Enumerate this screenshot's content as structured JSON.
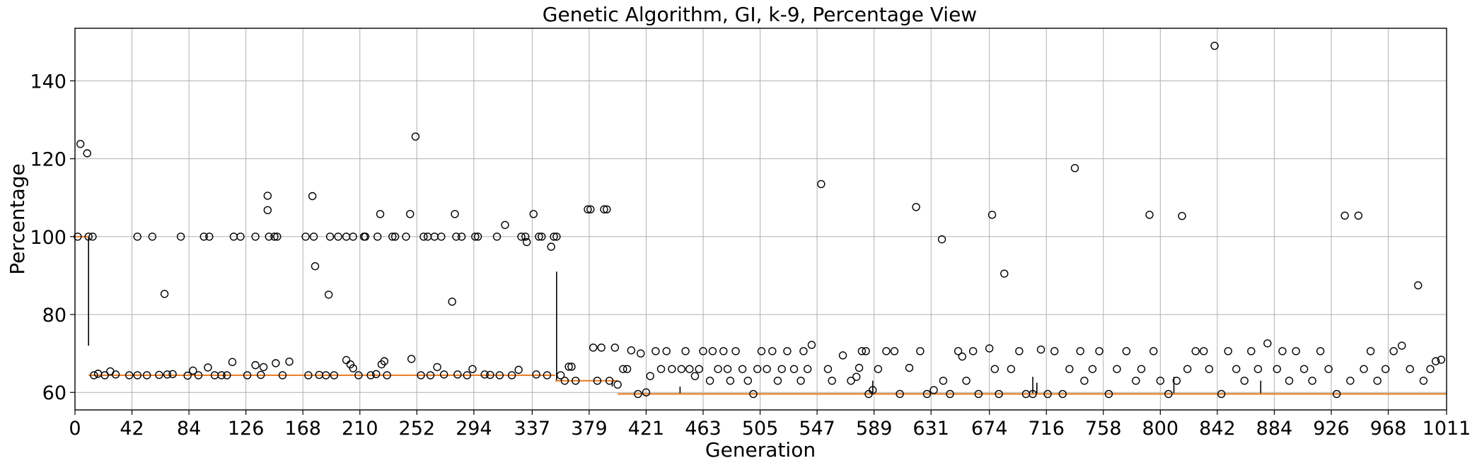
{
  "chart_data": {
    "type": "box",
    "title": "Genetic Algorithm, GI, k-9, Percentage View",
    "xlabel": "Generation",
    "ylabel": "Percentage",
    "xlim": [
      0,
      1011
    ],
    "ylim": [
      55.5,
      153.5
    ],
    "grid": true,
    "x_ticks": [
      0,
      42,
      84,
      126,
      168,
      210,
      252,
      294,
      337,
      379,
      421,
      463,
      505,
      547,
      589,
      631,
      674,
      716,
      758,
      800,
      842,
      884,
      926,
      968,
      1011
    ],
    "y_ticks": [
      60,
      80,
      100,
      120,
      140
    ],
    "median_segments": [
      {
        "x": [
          0,
          10
        ],
        "y": 100
      },
      {
        "x": [
          10,
          354
        ],
        "y": 64.4
      },
      {
        "x": [
          354,
          400
        ],
        "y": 63.0
      },
      {
        "x": [
          400,
          1011
        ],
        "y": 59.6
      }
    ],
    "whiskers": [
      {
        "x": 10,
        "y": [
          72,
          100
        ]
      },
      {
        "x": 355,
        "y": [
          63,
          91
        ]
      },
      {
        "x": 396,
        "y": [
          61.5,
          63
        ]
      },
      {
        "x": 446,
        "y": [
          59.6,
          61.5
        ]
      },
      {
        "x": 588,
        "y": [
          59.6,
          63
        ]
      },
      {
        "x": 706,
        "y": [
          59.6,
          64
        ]
      },
      {
        "x": 709,
        "y": [
          59.6,
          62.5
        ]
      },
      {
        "x": 810,
        "y": [
          59.6,
          64
        ]
      },
      {
        "x": 874,
        "y": [
          59.6,
          63
        ]
      }
    ],
    "outliers": [
      [
        2,
        100
      ],
      [
        4,
        123.8
      ],
      [
        9,
        121.4
      ],
      [
        10,
        100
      ],
      [
        13,
        100
      ],
      [
        14,
        64.4
      ],
      [
        17,
        64.8
      ],
      [
        22,
        64.4
      ],
      [
        26,
        65.4
      ],
      [
        30,
        64.6
      ],
      [
        40,
        64.4
      ],
      [
        46,
        100
      ],
      [
        46,
        64.4
      ],
      [
        53,
        64.4
      ],
      [
        57,
        100
      ],
      [
        62,
        64.5
      ],
      [
        66,
        85.3
      ],
      [
        68,
        64.6
      ],
      [
        72,
        64.7
      ],
      [
        78,
        100
      ],
      [
        83,
        64.3
      ],
      [
        87,
        65.6
      ],
      [
        91,
        64.4
      ],
      [
        95,
        100
      ],
      [
        98,
        66.4
      ],
      [
        99,
        100
      ],
      [
        103,
        64.4
      ],
      [
        108,
        64.4
      ],
      [
        112,
        64.4
      ],
      [
        117,
        100
      ],
      [
        116,
        67.8
      ],
      [
        122,
        100
      ],
      [
        127,
        64.4
      ],
      [
        133,
        100
      ],
      [
        133,
        67.0
      ],
      [
        137,
        64.5
      ],
      [
        139,
        66.5
      ],
      [
        142,
        110.5
      ],
      [
        142,
        106.8
      ],
      [
        143,
        100
      ],
      [
        147,
        100
      ],
      [
        149,
        100
      ],
      [
        148,
        67.5
      ],
      [
        153,
        64.4
      ],
      [
        158,
        67.9
      ],
      [
        170,
        100
      ],
      [
        172,
        64.4
      ],
      [
        175,
        110.4
      ],
      [
        176,
        100
      ],
      [
        177,
        92.4
      ],
      [
        180,
        64.5
      ],
      [
        185,
        64.4
      ],
      [
        187,
        85.1
      ],
      [
        188,
        100
      ],
      [
        191,
        64.4
      ],
      [
        194,
        100
      ],
      [
        200,
        100
      ],
      [
        200,
        68.3
      ],
      [
        203,
        67.2
      ],
      [
        205,
        100
      ],
      [
        205,
        66.2
      ],
      [
        209,
        64.4
      ],
      [
        213,
        100
      ],
      [
        214,
        100
      ],
      [
        218,
        64.4
      ],
      [
        222,
        64.7
      ],
      [
        223,
        100
      ],
      [
        225,
        105.8
      ],
      [
        226,
        67.2
      ],
      [
        228,
        68.0
      ],
      [
        230,
        64.4
      ],
      [
        234,
        100
      ],
      [
        236,
        100
      ],
      [
        244,
        100
      ],
      [
        247,
        105.8
      ],
      [
        248,
        68.6
      ],
      [
        251,
        125.7
      ],
      [
        255,
        64.4
      ],
      [
        257,
        100
      ],
      [
        260,
        100
      ],
      [
        262,
        64.4
      ],
      [
        265,
        100
      ],
      [
        267,
        66.5
      ],
      [
        270,
        100
      ],
      [
        272,
        64.6
      ],
      [
        278,
        83.3
      ],
      [
        280,
        105.8
      ],
      [
        281,
        100
      ],
      [
        282,
        64.6
      ],
      [
        285,
        100
      ],
      [
        289,
        64.4
      ],
      [
        293,
        66.0
      ],
      [
        295,
        100
      ],
      [
        297,
        100
      ],
      [
        302,
        64.6
      ],
      [
        306,
        64.5
      ],
      [
        311,
        100
      ],
      [
        313,
        64.4
      ],
      [
        317,
        103
      ],
      [
        322,
        64.4
      ],
      [
        327,
        65.8
      ],
      [
        329,
        100
      ],
      [
        332,
        100
      ],
      [
        333,
        98.6
      ],
      [
        338,
        105.8
      ],
      [
        340,
        64.6
      ],
      [
        342,
        100
      ],
      [
        344,
        100
      ],
      [
        348,
        64.4
      ],
      [
        351,
        97.4
      ],
      [
        353,
        100
      ],
      [
        355,
        100
      ],
      [
        358,
        64.4
      ],
      [
        361,
        63.0
      ],
      [
        364,
        66.6
      ],
      [
        366,
        66.6
      ],
      [
        369,
        63.0
      ],
      [
        378,
        107.0
      ],
      [
        380,
        107.0
      ],
      [
        382,
        71.5
      ],
      [
        385,
        63.0
      ],
      [
        388,
        71.5
      ],
      [
        390,
        107.0
      ],
      [
        392,
        107.0
      ],
      [
        394,
        63.0
      ],
      [
        398,
        71.5
      ],
      [
        400,
        62.0
      ],
      [
        404,
        66.0
      ],
      [
        407,
        66.0
      ],
      [
        410,
        70.8
      ],
      [
        415,
        59.6
      ],
      [
        417,
        70.0
      ],
      [
        421,
        60.0
      ],
      [
        424,
        64.2
      ],
      [
        428,
        70.6
      ],
      [
        432,
        66.0
      ],
      [
        436,
        70.6
      ],
      [
        440,
        66.0
      ],
      [
        447,
        66.0
      ],
      [
        450,
        70.6
      ],
      [
        453,
        66.0
      ],
      [
        457,
        64.2
      ],
      [
        460,
        66.0
      ],
      [
        463,
        70.6
      ],
      [
        468,
        63.0
      ],
      [
        470,
        70.6
      ],
      [
        474,
        66.0
      ],
      [
        478,
        70.6
      ],
      [
        481,
        66.0
      ],
      [
        483,
        63.0
      ],
      [
        487,
        70.6
      ],
      [
        492,
        66.0
      ],
      [
        496,
        63.0
      ],
      [
        500,
        59.6
      ],
      [
        503,
        66.0
      ],
      [
        506,
        70.6
      ],
      [
        510,
        66.0
      ],
      [
        514,
        70.6
      ],
      [
        518,
        63.0
      ],
      [
        521,
        66.0
      ],
      [
        525,
        70.6
      ],
      [
        530,
        66.0
      ],
      [
        535,
        63.0
      ],
      [
        537,
        70.6
      ],
      [
        540,
        66.0
      ],
      [
        543,
        72.2
      ],
      [
        550,
        113.5
      ],
      [
        555,
        66.0
      ],
      [
        558,
        63.0
      ],
      [
        566,
        69.5
      ],
      [
        572,
        63.0
      ],
      [
        576,
        64.0
      ],
      [
        578,
        66.3
      ],
      [
        580,
        70.6
      ],
      [
        583,
        70.6
      ],
      [
        585,
        59.6
      ],
      [
        588,
        60.6
      ],
      [
        592,
        66.0
      ],
      [
        598,
        70.6
      ],
      [
        604,
        70.6
      ],
      [
        608,
        59.6
      ],
      [
        615,
        66.3
      ],
      [
        620,
        107.6
      ],
      [
        623,
        70.6
      ],
      [
        628,
        59.6
      ],
      [
        633,
        60.6
      ],
      [
        639,
        99.3
      ],
      [
        640,
        63.0
      ],
      [
        645,
        59.6
      ],
      [
        651,
        70.6
      ],
      [
        654,
        69.2
      ],
      [
        657,
        63.0
      ],
      [
        662,
        70.6
      ],
      [
        666,
        59.6
      ],
      [
        674,
        71.3
      ],
      [
        676,
        105.6
      ],
      [
        678,
        66.0
      ],
      [
        681,
        59.6
      ],
      [
        685,
        90.5
      ],
      [
        690,
        66.0
      ],
      [
        696,
        70.6
      ],
      [
        701,
        59.6
      ],
      [
        706,
        59.6
      ],
      [
        712,
        71.0
      ],
      [
        717,
        59.6
      ],
      [
        722,
        70.6
      ],
      [
        728,
        59.6
      ],
      [
        733,
        66.0
      ],
      [
        737,
        117.6
      ],
      [
        741,
        70.6
      ],
      [
        744,
        63.0
      ],
      [
        750,
        66.0
      ],
      [
        755,
        70.6
      ],
      [
        762,
        59.6
      ],
      [
        768,
        66.0
      ],
      [
        775,
        70.6
      ],
      [
        782,
        63.0
      ],
      [
        786,
        66.0
      ],
      [
        792,
        105.6
      ],
      [
        795,
        70.6
      ],
      [
        800,
        63.0
      ],
      [
        806,
        59.6
      ],
      [
        812,
        63.0
      ],
      [
        816,
        105.3
      ],
      [
        820,
        66.0
      ],
      [
        826,
        70.6
      ],
      [
        832,
        70.6
      ],
      [
        836,
        66.0
      ],
      [
        840,
        149
      ],
      [
        845,
        59.6
      ],
      [
        850,
        70.6
      ],
      [
        856,
        66.0
      ],
      [
        862,
        63.0
      ],
      [
        867,
        70.6
      ],
      [
        872,
        66.0
      ],
      [
        879,
        72.6
      ],
      [
        886,
        66.0
      ],
      [
        890,
        70.6
      ],
      [
        895,
        63.0
      ],
      [
        900,
        70.6
      ],
      [
        906,
        66.0
      ],
      [
        912,
        63.0
      ],
      [
        918,
        70.6
      ],
      [
        924,
        66.0
      ],
      [
        930,
        59.6
      ],
      [
        936,
        105.4
      ],
      [
        940,
        63.0
      ],
      [
        946,
        105.4
      ],
      [
        950,
        66.0
      ],
      [
        955,
        70.6
      ],
      [
        960,
        63.0
      ],
      [
        966,
        66.0
      ],
      [
        972,
        70.6
      ],
      [
        978,
        72.0
      ],
      [
        984,
        66.0
      ],
      [
        990,
        87.5
      ],
      [
        994,
        63.0
      ],
      [
        999,
        66.0
      ],
      [
        1003,
        68.0
      ],
      [
        1007,
        68.4
      ]
    ]
  }
}
